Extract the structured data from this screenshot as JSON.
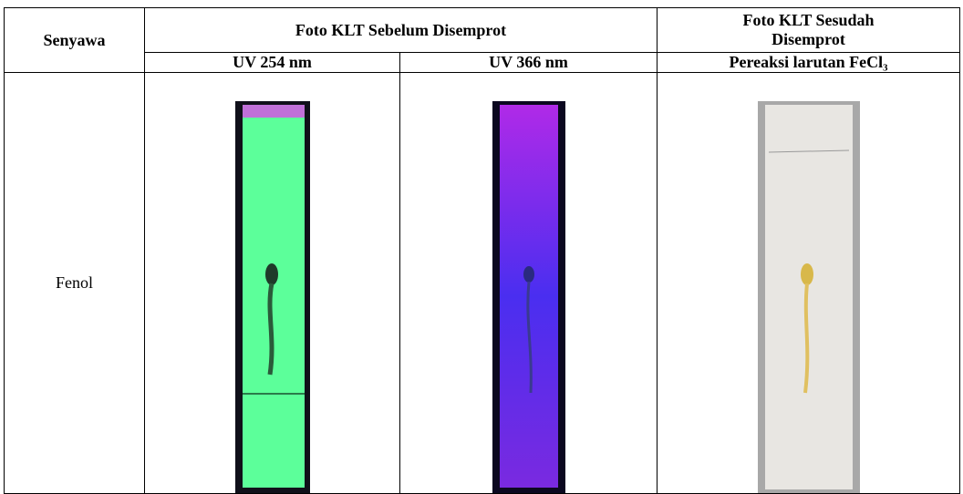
{
  "table": {
    "header": {
      "compound": "Senyawa",
      "before": "Foto KLT Sebelum Disemprot",
      "after": "Foto KLT Sesudah Disemprot",
      "uv254": "UV 254 nm",
      "uv366": "UV 366 nm",
      "reagent": "Pereaksi larutan FeCl₃"
    },
    "rows": [
      {
        "compound": "Fenol"
      }
    ]
  }
}
